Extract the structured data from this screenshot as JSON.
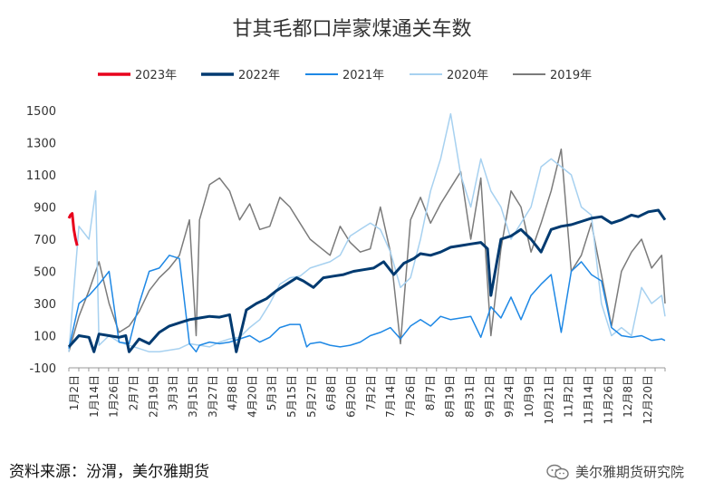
{
  "chart_data": {
    "type": "line",
    "title": "甘其毛都口岸蒙煤通关车数",
    "xlabel": "",
    "ylabel": "",
    "ylim": [
      -100,
      1500
    ],
    "yticks": [
      -100,
      100,
      300,
      500,
      700,
      900,
      1100,
      1300,
      1500
    ],
    "grid": false,
    "legend_position": "top",
    "x_tick_labels": [
      "1月2日",
      "1月14日",
      "1月26日",
      "2月7日",
      "2月19日",
      "3月3日",
      "3月15日",
      "3月27日",
      "4月8日",
      "4月20日",
      "5月3日",
      "5月15日",
      "5月27日",
      "6月8日",
      "6月20日",
      "7月2日",
      "7月14日",
      "7月26日",
      "8月7日",
      "8月19日",
      "8月31日",
      "9月12日",
      "9月24日",
      "10月9日",
      "10月21日",
      "11月2日",
      "11月14日",
      "11月26日",
      "12月8日",
      "12月20日"
    ],
    "series": [
      {
        "name": "2023年",
        "color": "#e8001c",
        "width": 3,
        "x": [
          0,
          1,
          2,
          3,
          4,
          5
        ],
        "values": [
          830,
          850,
          860,
          760,
          700,
          660
        ]
      },
      {
        "name": "2022年",
        "color": "#003a70",
        "width": 3,
        "x": [
          0,
          6,
          12,
          15,
          18,
          24,
          30,
          34,
          36,
          42,
          48,
          54,
          60,
          66,
          72,
          78,
          84,
          90,
          96,
          100,
          106,
          112,
          118,
          124,
          130,
          136,
          140,
          146,
          152,
          158,
          164,
          170,
          176,
          182,
          188,
          194,
          200,
          206,
          210,
          216,
          222,
          228,
          234,
          240,
          246,
          250,
          252,
          258,
          264,
          270,
          276,
          282,
          288,
          294,
          300,
          306,
          312,
          318,
          324,
          330,
          336,
          340,
          346,
          352,
          356
        ],
        "values": [
          30,
          100,
          90,
          0,
          110,
          100,
          90,
          100,
          0,
          80,
          50,
          120,
          160,
          180,
          200,
          210,
          220,
          215,
          230,
          0,
          260,
          300,
          330,
          380,
          420,
          460,
          440,
          400,
          460,
          470,
          480,
          500,
          510,
          520,
          560,
          480,
          550,
          580,
          610,
          600,
          620,
          650,
          660,
          670,
          680,
          640,
          350,
          700,
          720,
          760,
          700,
          620,
          760,
          780,
          790,
          810,
          830,
          840,
          800,
          820,
          850,
          840,
          870,
          880,
          820
        ]
      },
      {
        "name": "2021年",
        "color": "#1e88e5",
        "width": 1.5,
        "x": [
          0,
          6,
          12,
          18,
          24,
          30,
          36,
          42,
          48,
          54,
          60,
          66,
          72,
          76,
          78,
          84,
          90,
          96,
          102,
          108,
          114,
          120,
          126,
          132,
          138,
          142,
          144,
          150,
          156,
          162,
          168,
          174,
          180,
          186,
          192,
          198,
          204,
          210,
          216,
          222,
          228,
          234,
          240,
          246,
          252,
          258,
          264,
          270,
          276,
          282,
          288,
          294,
          300,
          306,
          312,
          318,
          324,
          330,
          336,
          342,
          348,
          354,
          356
        ],
        "values": [
          20,
          300,
          350,
          420,
          500,
          60,
          50,
          300,
          500,
          520,
          600,
          580,
          50,
          0,
          40,
          60,
          50,
          60,
          80,
          100,
          60,
          90,
          150,
          170,
          170,
          30,
          50,
          60,
          40,
          30,
          40,
          60,
          100,
          120,
          150,
          80,
          160,
          200,
          160,
          220,
          200,
          210,
          220,
          90,
          280,
          210,
          340,
          200,
          350,
          420,
          480,
          120,
          500,
          560,
          480,
          440,
          150,
          100,
          90,
          100,
          70,
          80,
          70
        ]
      },
      {
        "name": "2020年",
        "color": "#a7d1f0",
        "width": 1.5,
        "x": [
          0,
          6,
          12,
          16,
          18,
          24,
          30,
          36,
          42,
          48,
          54,
          60,
          66,
          72,
          78,
          84,
          90,
          96,
          102,
          108,
          114,
          120,
          126,
          132,
          138,
          144,
          150,
          156,
          162,
          168,
          174,
          180,
          186,
          192,
          198,
          204,
          210,
          216,
          222,
          228,
          234,
          240,
          246,
          252,
          258,
          264,
          270,
          276,
          282,
          288,
          294,
          300,
          306,
          312,
          318,
          324,
          330,
          336,
          342,
          348,
          354,
          356
        ],
        "values": [
          0,
          780,
          700,
          1000,
          40,
          100,
          60,
          40,
          20,
          0,
          0,
          10,
          20,
          50,
          40,
          30,
          60,
          80,
          90,
          150,
          200,
          300,
          420,
          460,
          470,
          520,
          540,
          560,
          600,
          720,
          760,
          800,
          760,
          620,
          400,
          460,
          700,
          1000,
          1200,
          1480,
          1100,
          900,
          1200,
          1000,
          900,
          700,
          800,
          900,
          1150,
          1200,
          1150,
          1100,
          900,
          850,
          300,
          100,
          150,
          100,
          400,
          300,
          350,
          220
        ]
      },
      {
        "name": "2019年",
        "color": "#7b7b7b",
        "width": 1.5,
        "x": [
          0,
          6,
          12,
          18,
          24,
          30,
          36,
          42,
          48,
          54,
          60,
          66,
          72,
          76,
          78,
          84,
          90,
          96,
          102,
          108,
          114,
          120,
          126,
          132,
          138,
          144,
          150,
          156,
          162,
          168,
          174,
          180,
          186,
          192,
          198,
          204,
          210,
          216,
          222,
          228,
          234,
          240,
          246,
          252,
          258,
          264,
          270,
          276,
          282,
          288,
          294,
          300,
          306,
          312,
          318,
          324,
          330,
          336,
          342,
          348,
          354,
          356
        ],
        "values": [
          0,
          220,
          380,
          560,
          300,
          120,
          160,
          250,
          380,
          460,
          520,
          600,
          820,
          100,
          820,
          1040,
          1080,
          1000,
          820,
          920,
          760,
          780,
          960,
          900,
          800,
          700,
          650,
          600,
          780,
          680,
          620,
          640,
          900,
          620,
          50,
          820,
          960,
          800,
          920,
          1020,
          1120,
          700,
          1080,
          100,
          640,
          1000,
          900,
          620,
          800,
          1000,
          1260,
          500,
          600,
          800,
          480,
          160,
          500,
          620,
          700,
          520,
          600,
          300
        ]
      }
    ]
  },
  "footer": {
    "source": "资料来源：汾渭，美尔雅期货",
    "watermark": "美尔雅期货研究院"
  }
}
